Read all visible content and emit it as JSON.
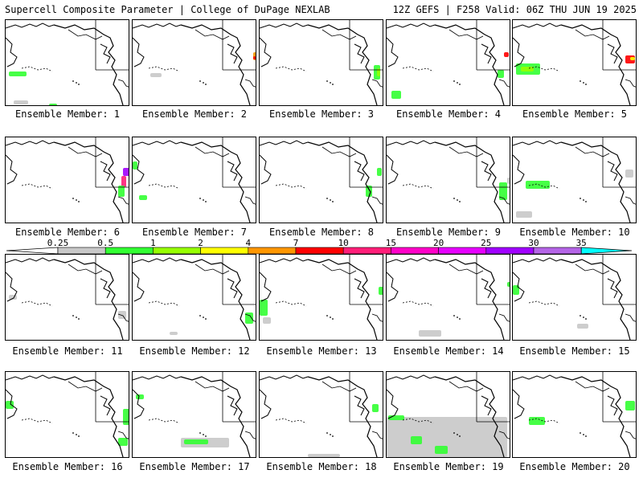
{
  "header": {
    "title_left": "Supercell Composite Parameter | College of DuPage NEXLAB",
    "title_right": "12Z GEFS | F258 Valid: 06Z THU JUN 19 2025"
  },
  "colorbar": {
    "ticks": [
      "0.25",
      "0.5",
      "1",
      "2",
      "4",
      "7",
      "10",
      "15",
      "20",
      "25",
      "30",
      "35"
    ],
    "colors": [
      "#ffffff",
      "#c8c8c8",
      "#32ff32",
      "#96ff00",
      "#ffff00",
      "#ff9600",
      "#ff0000",
      "#ff1e78",
      "#ff00c8",
      "#e600ff",
      "#a000ff",
      "#b464e6",
      "#00ffff"
    ]
  },
  "panels": [
    {
      "label": "Ensemble Member: 1"
    },
    {
      "label": "Ensemble Member: 2"
    },
    {
      "label": "Ensemble Member: 3"
    },
    {
      "label": "Ensemble Member: 4"
    },
    {
      "label": "Ensemble Member: 5"
    },
    {
      "label": "Ensemble Member: 6"
    },
    {
      "label": "Ensemble Member: 7"
    },
    {
      "label": "Ensemble Member: 8"
    },
    {
      "label": "Ensemble Member: 9"
    },
    {
      "label": "Ensemble Member: 10"
    },
    {
      "label": "Ensemble Member: 11"
    },
    {
      "label": "Ensemble Member: 12"
    },
    {
      "label": "Ensemble Member: 13"
    },
    {
      "label": "Ensemble Member: 14"
    },
    {
      "label": "Ensemble Member: 15"
    },
    {
      "label": "Ensemble Member: 16"
    },
    {
      "label": "Ensemble Member: 17"
    },
    {
      "label": "Ensemble Member: 18"
    },
    {
      "label": "Ensemble Member: 19"
    },
    {
      "label": "Ensemble Member: 20"
    }
  ]
}
